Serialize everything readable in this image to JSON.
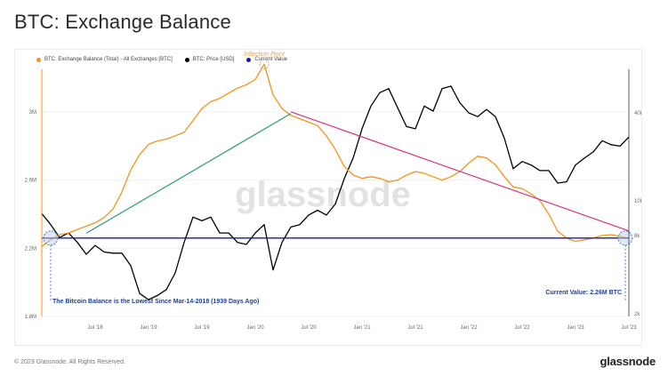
{
  "page": {
    "title": "BTC: Exchange Balance",
    "copyright": "© 2023 Glassnode. All Rights Reserved.",
    "logo": "glassnode",
    "watermark": "glassnode"
  },
  "legend": [
    {
      "label": "BTC: Exchange Balance (Total) - All Exchanges [BTC]",
      "color": "#f7931a"
    },
    {
      "label": "BTC: Price [USD]",
      "color": "#000000"
    },
    {
      "label": "Current Value",
      "color": "#1a1aa6"
    }
  ],
  "chart_data": {
    "type": "line",
    "title": "BTC: Exchange Balance",
    "x_ticks": [
      "Jul '18",
      "Jan '19",
      "Jul '19",
      "Jan '20",
      "Jul '20",
      "Jan '21",
      "Jul '21",
      "Jan '22",
      "Jul '22",
      "Jan '23",
      "Jul '23"
    ],
    "x_range": [
      "2018-01",
      "2023-07"
    ],
    "y_left": {
      "ticks": [
        "1.8M",
        "2.2M",
        "2.6M",
        "3M"
      ],
      "range": [
        1800000,
        3250000
      ]
    },
    "y_right": {
      "ticks": [
        "2k",
        "8k",
        "10k",
        "40k"
      ],
      "scale": "log"
    },
    "series": [
      {
        "name": "BTC: Exchange Balance (Total) - All Exchanges [BTC]",
        "color": "#f7931a",
        "axis": "left",
        "x": [
          "2018-01",
          "2018-02",
          "2018-03",
          "2018-04",
          "2018-05",
          "2018-06",
          "2018-07",
          "2018-08",
          "2018-09",
          "2018-10",
          "2018-11",
          "2018-12",
          "2019-01",
          "2019-02",
          "2019-03",
          "2019-04",
          "2019-05",
          "2019-06",
          "2019-07",
          "2019-08",
          "2019-09",
          "2019-10",
          "2019-11",
          "2019-12",
          "2020-01",
          "2020-02",
          "2020-03",
          "2020-04",
          "2020-05",
          "2020-06",
          "2020-07",
          "2020-08",
          "2020-09",
          "2020-10",
          "2020-11",
          "2020-12",
          "2021-01",
          "2021-02",
          "2021-03",
          "2021-04",
          "2021-05",
          "2021-06",
          "2021-07",
          "2021-08",
          "2021-09",
          "2021-10",
          "2021-11",
          "2021-12",
          "2022-01",
          "2022-02",
          "2022-03",
          "2022-04",
          "2022-05",
          "2022-06",
          "2022-07",
          "2022-08",
          "2022-09",
          "2022-10",
          "2022-11",
          "2022-12",
          "2023-01",
          "2023-02",
          "2023-03",
          "2023-04",
          "2023-05",
          "2023-06",
          "2023-07"
        ],
        "values": [
          2210000,
          2250000,
          2280000,
          2290000,
          2310000,
          2330000,
          2350000,
          2380000,
          2430000,
          2530000,
          2660000,
          2750000,
          2810000,
          2830000,
          2840000,
          2860000,
          2880000,
          2950000,
          3020000,
          3060000,
          3080000,
          3110000,
          3140000,
          3160000,
          3190000,
          3280000,
          3100000,
          3020000,
          2980000,
          2960000,
          2940000,
          2920000,
          2860000,
          2780000,
          2680000,
          2630000,
          2610000,
          2620000,
          2610000,
          2590000,
          2600000,
          2630000,
          2650000,
          2640000,
          2620000,
          2600000,
          2620000,
          2650000,
          2700000,
          2740000,
          2730000,
          2690000,
          2620000,
          2560000,
          2550000,
          2520000,
          2480000,
          2400000,
          2300000,
          2260000,
          2240000,
          2250000,
          2260000,
          2275000,
          2280000,
          2270000,
          2260000
        ]
      },
      {
        "name": "BTC: Price [USD]",
        "color": "#000000",
        "axis": "right",
        "x": [
          "2018-01",
          "2018-02",
          "2018-03",
          "2018-04",
          "2018-05",
          "2018-06",
          "2018-07",
          "2018-08",
          "2018-09",
          "2018-10",
          "2018-11",
          "2018-12",
          "2019-01",
          "2019-02",
          "2019-03",
          "2019-04",
          "2019-05",
          "2019-06",
          "2019-07",
          "2019-08",
          "2019-09",
          "2019-10",
          "2019-11",
          "2019-12",
          "2020-01",
          "2020-02",
          "2020-03",
          "2020-04",
          "2020-05",
          "2020-06",
          "2020-07",
          "2020-08",
          "2020-09",
          "2020-10",
          "2020-11",
          "2020-12",
          "2021-01",
          "2021-02",
          "2021-03",
          "2021-04",
          "2021-05",
          "2021-06",
          "2021-07",
          "2021-08",
          "2021-09",
          "2021-10",
          "2021-11",
          "2021-12",
          "2022-01",
          "2022-02",
          "2022-03",
          "2022-04",
          "2022-05",
          "2022-06",
          "2022-07",
          "2022-08",
          "2022-09",
          "2022-10",
          "2022-11",
          "2022-12",
          "2023-01",
          "2023-02",
          "2023-03",
          "2023-04",
          "2023-05",
          "2023-06",
          "2023-07"
        ],
        "values": [
          11000,
          9500,
          8000,
          8500,
          7500,
          6400,
          7200,
          6600,
          6500,
          6500,
          5500,
          3800,
          3500,
          3700,
          4000,
          5000,
          7500,
          10500,
          10000,
          10500,
          8500,
          8500,
          7500,
          7300,
          8500,
          9500,
          5200,
          7500,
          9200,
          9500,
          10800,
          11500,
          10800,
          12500,
          17500,
          23000,
          34000,
          46000,
          55000,
          58000,
          45000,
          35000,
          34000,
          46000,
          43000,
          58000,
          60000,
          48000,
          42000,
          40000,
          44000,
          40000,
          30000,
          20000,
          22000,
          21000,
          19500,
          19500,
          16500,
          16800,
          21000,
          23000,
          25000,
          29000,
          27500,
          27000,
          30500
        ]
      },
      {
        "name": "Current Value",
        "color": "#1a1aa6",
        "axis": "left",
        "values": [
          2260000
        ]
      }
    ],
    "annotations": [
      {
        "text": "Inflection Point",
        "color": "#e8a35a"
      },
      {
        "text": "The Bitcoin Balance is the Lowest Since Mar-14-2018 (1939 Days Ago)",
        "color": "#1a3fa0"
      },
      {
        "text": "Current Value: 2.26M BTC",
        "color": "#1a3fa0"
      }
    ],
    "trend_lines": [
      {
        "from": "2018-06",
        "to": "2020-05",
        "color": "#2a9d6a"
      },
      {
        "from": "2020-05",
        "to": "2023-07",
        "color": "#d63384"
      }
    ],
    "grid": true,
    "legend_position": "top-left"
  }
}
